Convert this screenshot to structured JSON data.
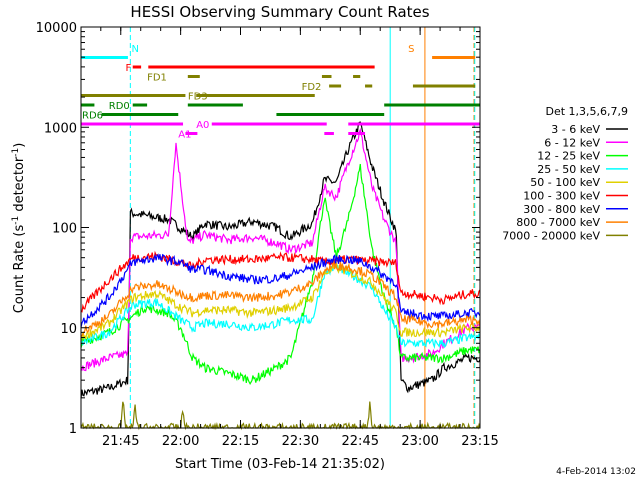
{
  "chart_data": {
    "type": "line",
    "title": "HESSI Observing Summary Count Rates",
    "xlabel": "Start Time (03-Feb-14 21:35:02)",
    "ylabel": "Count Rate (s⁻¹ detector⁻¹)",
    "ylabel_parts": [
      "Count Rate (s",
      "-1",
      " detector",
      "-1",
      ")"
    ],
    "xlim": [
      21.584,
      23.25
    ],
    "ylim": [
      1,
      10000
    ],
    "yscale": "log",
    "x_ticks": [
      {
        "value": 21.75,
        "label": "21:45"
      },
      {
        "value": 22.0,
        "label": "22:00"
      },
      {
        "value": 22.25,
        "label": "22:15"
      },
      {
        "value": 22.5,
        "label": "22:30"
      },
      {
        "value": 22.75,
        "label": "22:45"
      },
      {
        "value": 23.0,
        "label": "23:00"
      },
      {
        "value": 23.25,
        "label": "23:15"
      }
    ],
    "y_ticks": [
      {
        "value": 1,
        "label": "1"
      },
      {
        "value": 10,
        "label": "10"
      },
      {
        "value": 100,
        "label": "100"
      },
      {
        "value": 1000,
        "label": "1000"
      },
      {
        "value": 10000,
        "label": "10000"
      }
    ],
    "legend_title": "Det 1,3,5,6,7,9",
    "legend_position": "right",
    "series": [
      {
        "name": "3 - 6 keV",
        "color": "#000000",
        "x": [
          21.584,
          21.7,
          21.78,
          21.79,
          21.95,
          22.05,
          22.1,
          22.2,
          22.3,
          22.4,
          22.46,
          22.55,
          22.6,
          22.65,
          22.7,
          22.75,
          22.8,
          22.85,
          22.9,
          22.92,
          22.95,
          23.05,
          23.1,
          23.2
        ],
        "y": [
          2.2,
          2.5,
          3,
          140,
          120,
          80,
          110,
          100,
          115,
          100,
          80,
          110,
          300,
          280,
          600,
          1100,
          400,
          180,
          90,
          3,
          2.5,
          3,
          4,
          5
        ]
      },
      {
        "name": "6 - 12 keV",
        "color": "#ff00ff",
        "x": [
          21.584,
          21.7,
          21.78,
          21.79,
          21.95,
          21.98,
          22.03,
          22.1,
          22.2,
          22.3,
          22.4,
          22.46,
          22.55,
          22.6,
          22.65,
          22.7,
          22.75,
          22.8,
          22.85,
          22.9,
          22.92,
          22.95,
          23.05,
          23.1,
          23.2
        ],
        "y": [
          4,
          5,
          5.5,
          80,
          85,
          700,
          70,
          85,
          75,
          80,
          70,
          60,
          70,
          250,
          200,
          450,
          900,
          250,
          120,
          70,
          5,
          5,
          5.5,
          7,
          10
        ]
      },
      {
        "name": "12 - 25 keV",
        "color": "#00ff00",
        "x": [
          21.584,
          21.7,
          21.78,
          21.85,
          21.95,
          22.0,
          22.05,
          22.1,
          22.2,
          22.3,
          22.4,
          22.46,
          22.55,
          22.6,
          22.65,
          22.7,
          22.75,
          22.8,
          22.85,
          22.9,
          22.92,
          22.95,
          23.05,
          23.1,
          23.2
        ],
        "y": [
          7,
          9,
          12,
          16,
          14,
          10,
          5,
          4,
          3.5,
          3,
          4,
          5,
          30,
          200,
          50,
          120,
          400,
          60,
          20,
          10,
          5,
          5,
          5,
          5,
          6
        ]
      },
      {
        "name": "25 - 50 keV",
        "color": "#00ffff",
        "x": [
          21.584,
          21.7,
          21.8,
          21.9,
          22.0,
          22.05,
          22.1,
          22.2,
          22.3,
          22.4,
          22.46,
          22.55,
          22.6,
          22.65,
          22.7,
          22.75,
          22.8,
          22.85,
          22.9,
          22.92,
          22.95,
          23.05,
          23.1,
          23.2
        ],
        "y": [
          7,
          9,
          17,
          18,
          12,
          10,
          11,
          11,
          10,
          11,
          12,
          12,
          35,
          40,
          35,
          30,
          25,
          15,
          10,
          7,
          7,
          7,
          7,
          8
        ]
      },
      {
        "name": "50 - 100 keV",
        "color": "#e0d000",
        "x": [
          21.584,
          21.7,
          21.8,
          21.9,
          22.0,
          22.05,
          22.1,
          22.2,
          22.3,
          22.4,
          22.46,
          22.55,
          22.6,
          22.65,
          22.7,
          22.75,
          22.8,
          22.85,
          22.9,
          22.92,
          22.95,
          23.05,
          23.1,
          23.2
        ],
        "y": [
          8,
          11,
          20,
          22,
          16,
          14,
          15,
          15,
          14,
          15,
          16,
          20,
          35,
          40,
          36,
          32,
          28,
          20,
          14,
          9,
          9,
          9,
          9,
          10
        ]
      },
      {
        "name": "100 - 300 keV",
        "color": "#ff0000",
        "x": [
          21.584,
          21.7,
          21.8,
          21.9,
          22.0,
          22.05,
          22.1,
          22.2,
          22.3,
          22.4,
          22.46,
          22.55,
          22.6,
          22.65,
          22.7,
          22.75,
          22.8,
          22.85,
          22.9,
          22.92,
          22.95,
          23.05,
          23.1,
          23.2
        ],
        "y": [
          15,
          30,
          50,
          52,
          45,
          40,
          48,
          48,
          48,
          50,
          50,
          48,
          45,
          47,
          48,
          47,
          46,
          45,
          44,
          22,
          22,
          20,
          19,
          22
        ]
      },
      {
        "name": "300 - 800 keV",
        "color": "#0000ff",
        "x": [
          21.584,
          21.7,
          21.8,
          21.9,
          22.0,
          22.05,
          22.1,
          22.2,
          22.3,
          22.4,
          22.46,
          22.55,
          22.6,
          22.65,
          22.7,
          22.75,
          22.8,
          22.85,
          22.9,
          22.92,
          22.95,
          23.05,
          23.1,
          23.2
        ],
        "y": [
          11,
          20,
          45,
          50,
          45,
          38,
          38,
          33,
          30,
          31,
          34,
          40,
          45,
          48,
          48,
          46,
          40,
          33,
          28,
          14,
          14,
          13,
          13,
          14
        ]
      },
      {
        "name": "800 - 7000 keV",
        "color": "#ff8000",
        "x": [
          21.584,
          21.7,
          21.8,
          21.9,
          22.0,
          22.05,
          22.1,
          22.2,
          22.3,
          22.4,
          22.46,
          22.55,
          22.6,
          22.65,
          22.7,
          22.75,
          22.8,
          22.85,
          22.9,
          22.92,
          22.95,
          23.05,
          23.1,
          23.2
        ],
        "y": [
          9,
          13,
          25,
          27,
          22,
          20,
          21,
          21,
          20,
          21,
          23,
          28,
          37,
          42,
          40,
          37,
          33,
          26,
          20,
          12,
          12,
          11,
          11,
          12
        ]
      },
      {
        "name": "7000 - 20000 keV",
        "color": "#808000",
        "x": [
          21.584,
          21.75,
          21.76,
          21.77,
          21.8,
          21.81,
          21.82,
          22.0,
          22.01,
          22.02,
          22.4,
          22.78,
          22.79,
          22.8,
          23.0,
          23.2
        ],
        "y": [
          1,
          1,
          1.8,
          1,
          1,
          1.6,
          1,
          1,
          1.5,
          1,
          1,
          1,
          1.8,
          1,
          1,
          1
        ]
      }
    ],
    "flags": [
      {
        "label": "N",
        "color": "#00ffff",
        "label_x": 21.795,
        "label_y_rank": 0,
        "segments": [
          {
            "x": [
              21.584,
              21.78
            ],
            "y_rank": 1
          }
        ]
      },
      {
        "label": "F",
        "color": "#ff0000",
        "label_x": 21.77,
        "label_y_rank": 2,
        "segments": [
          {
            "x": [
              21.8,
              21.835
            ],
            "y_rank": 2
          },
          {
            "x": [
              21.865,
              22.81
            ],
            "y_rank": 2
          }
        ]
      },
      {
        "label": "FD1",
        "color": "#808000",
        "label_x": 21.86,
        "label_y_rank": 3,
        "segments": [
          {
            "x": [
              22.03,
              22.08
            ],
            "y_rank": 3
          },
          {
            "x": [
              22.59,
              22.63
            ],
            "y_rank": 3
          },
          {
            "x": [
              22.72,
              22.75
            ],
            "y_rank": 3
          }
        ]
      },
      {
        "label": "FD2",
        "color": "#808000",
        "label_x": 22.505,
        "label_y_rank": 4,
        "segments": [
          {
            "x": [
              22.62,
              22.67
            ],
            "y_rank": 4
          },
          {
            "x": [
              22.77,
              22.8
            ],
            "y_rank": 4
          },
          {
            "x": [
              22.97,
              23.23
            ],
            "y_rank": 4
          }
        ]
      },
      {
        "label": "FD3",
        "color": "#808000",
        "label_x": 22.03,
        "label_y_rank": 5,
        "segments": [
          {
            "x": [
              21.584,
              22.02
            ],
            "y_rank": 5
          },
          {
            "x": [
              22.065,
              22.56
            ],
            "y_rank": 5
          }
        ]
      },
      {
        "label": "RD0",
        "color": "#008000",
        "label_x": 21.7,
        "label_y_rank": 6,
        "segments": [
          {
            "x": [
              21.584,
              21.64
            ],
            "y_rank": 6
          },
          {
            "x": [
              21.8,
              21.86
            ],
            "y_rank": 6
          },
          {
            "x": [
              22.03,
              22.26
            ],
            "y_rank": 6
          },
          {
            "x": [
              22.85,
              23.25
            ],
            "y_rank": 6
          }
        ]
      },
      {
        "label": "RD6",
        "color": "#008000",
        "label_x": 21.584,
        "label_y_rank": 7,
        "segments": [
          {
            "x": [
              21.67,
              21.99
            ],
            "y_rank": 7
          },
          {
            "x": [
              22.4,
              22.85
            ],
            "y_rank": 7
          }
        ]
      },
      {
        "label": "A0",
        "color": "#ff00ff",
        "label_x": 22.065,
        "label_y_rank": 8,
        "segments": [
          {
            "x": [
              21.584,
              22.01
            ],
            "y_rank": 8
          },
          {
            "x": [
              22.13,
              22.61
            ],
            "y_rank": 8
          },
          {
            "x": [
              22.7,
              23.25
            ],
            "y_rank": 8
          }
        ]
      },
      {
        "label": "A1",
        "color": "#ff00ff",
        "label_x": 21.99,
        "label_y_rank": 9,
        "segments": [
          {
            "x": [
              22.02,
              22.07
            ],
            "y_rank": 9
          },
          {
            "x": [
              22.6,
              22.64
            ],
            "y_rank": 9
          },
          {
            "x": [
              22.7,
              22.77
            ],
            "y_rank": 9
          }
        ]
      },
      {
        "label": "S",
        "color": "#ff8000",
        "label_x": 22.95,
        "label_y_rank": 0,
        "segments": [
          {
            "x": [
              23.05,
              23.23
            ],
            "y_rank": 1
          }
        ]
      }
    ],
    "vertical_lines": [
      {
        "x": 21.79,
        "color": "#00ffff",
        "style": "dashed"
      },
      {
        "x": 22.875,
        "color": "#00ffff",
        "style": "solid"
      },
      {
        "x": 23.02,
        "color": "#ff8000",
        "style": "solid"
      },
      {
        "x": 23.225,
        "color": "#ff8000",
        "style": "dashed"
      },
      {
        "x": 23.228,
        "color": "#00ffff",
        "style": "dashed"
      }
    ],
    "footer": "4-Feb-2014 13:02"
  }
}
